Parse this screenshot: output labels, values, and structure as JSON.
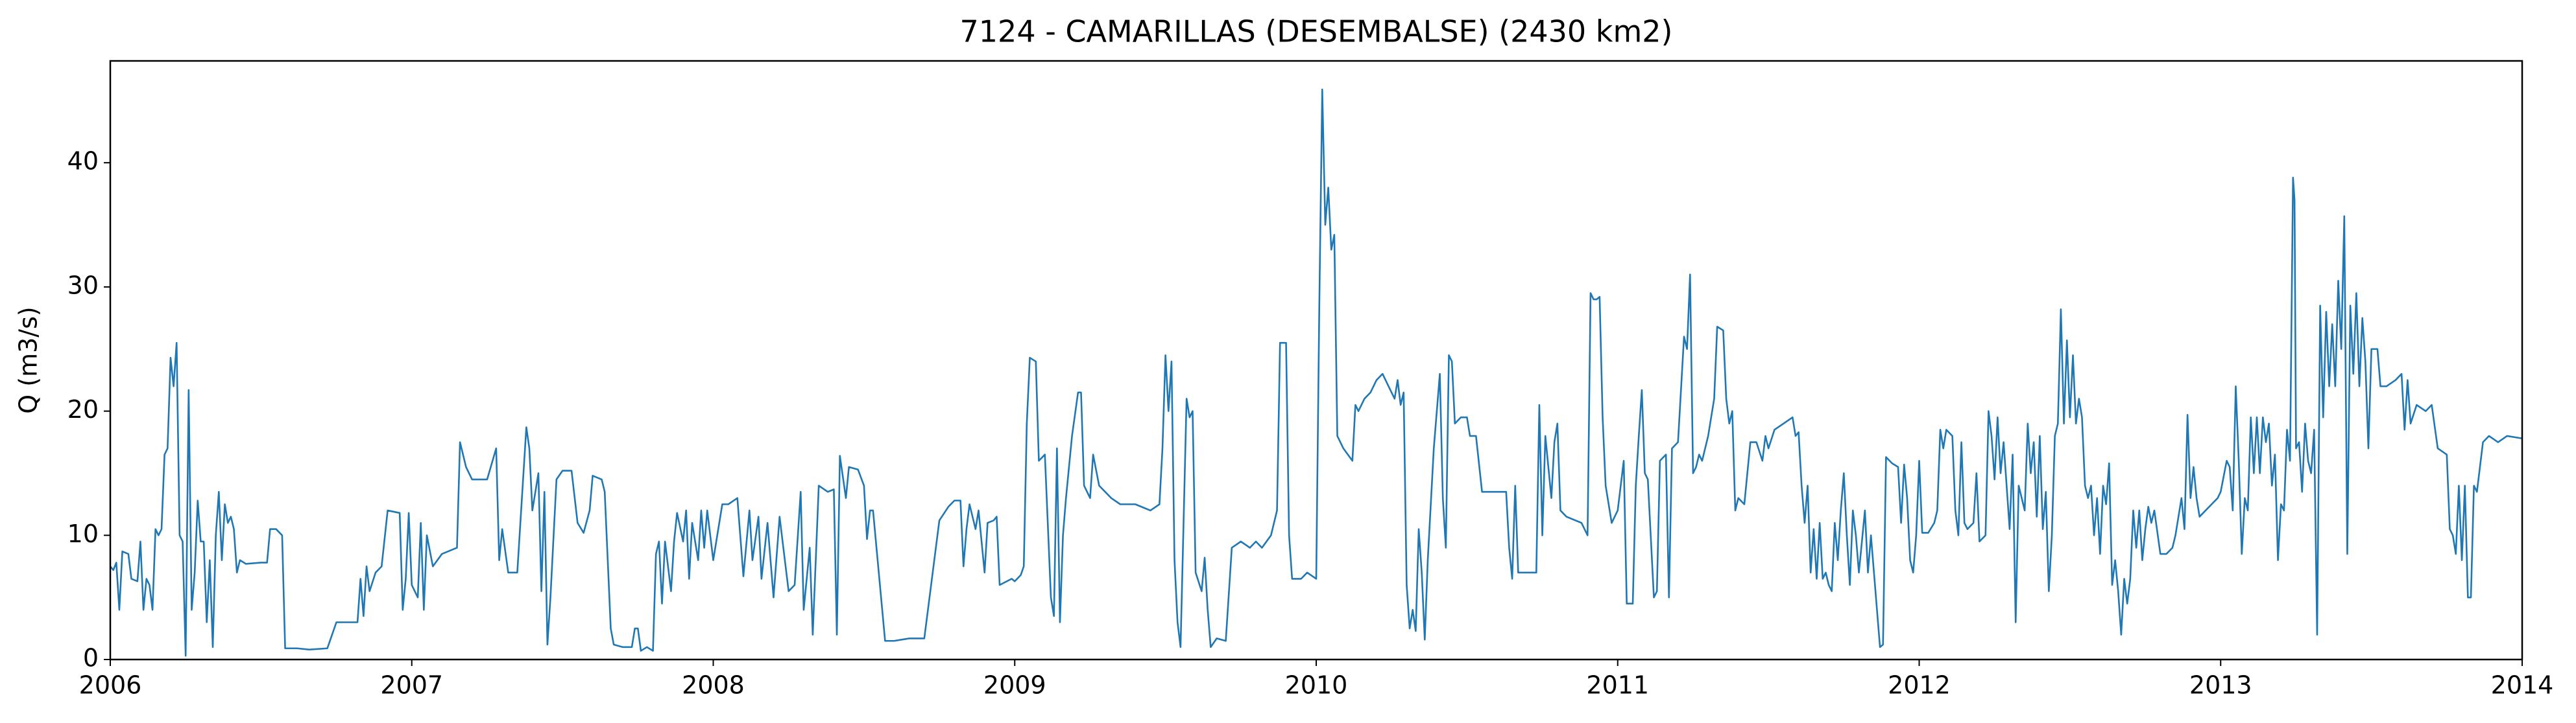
{
  "chart_data": {
    "type": "line",
    "title": "7124 - CAMARILLAS (DESEMBALSE) (2430 km2)",
    "y_label": "Q (m3/s)",
    "color": "#1f77b4",
    "xlim": [
      2006,
      2014
    ],
    "xticks": [
      2006,
      2007,
      2008,
      2009,
      2010,
      2011,
      2012,
      2013,
      2014
    ],
    "ylim": [
      0,
      48.2
    ],
    "yticks": [
      0,
      10,
      20,
      30,
      40
    ],
    "x": [
      2006,
      2006.01,
      2006.02,
      2006.03,
      2006.04,
      2006.06,
      2006.07,
      2006.09,
      2006.1,
      2006.11,
      2006.12,
      2006.13,
      2006.14,
      2006.15,
      2006.16,
      2006.17,
      2006.18,
      2006.19,
      2006.2,
      2006.21,
      2006.22,
      2006.23,
      2006.24,
      2006.25,
      2006.26,
      2006.27,
      2006.28,
      2006.29,
      2006.3,
      2006.31,
      2006.32,
      2006.33,
      2006.34,
      2006.35,
      2006.36,
      2006.37,
      2006.38,
      2006.39,
      2006.4,
      2006.41,
      2006.42,
      2006.43,
      2006.45,
      2006.5,
      2006.52,
      2006.53,
      2006.55,
      2006.57,
      2006.58,
      2006.62,
      2006.66,
      2006.72,
      2006.75,
      2006.8,
      2006.82,
      2006.83,
      2006.84,
      2006.85,
      2006.86,
      2006.88,
      2006.9,
      2006.92,
      2006.96,
      2006.97,
      2006.98,
      2006.99,
      2007,
      2007.02,
      2007.03,
      2007.04,
      2007.05,
      2007.07,
      2007.1,
      2007.15,
      2007.16,
      2007.18,
      2007.2,
      2007.25,
      2007.28,
      2007.29,
      2007.3,
      2007.32,
      2007.35,
      2007.38,
      2007.39,
      2007.4,
      2007.42,
      2007.43,
      2007.44,
      2007.45,
      2007.46,
      2007.48,
      2007.5,
      2007.53,
      2007.55,
      2007.57,
      2007.59,
      2007.6,
      2007.63,
      2007.64,
      2007.66,
      2007.67,
      2007.7,
      2007.73,
      2007.74,
      2007.75,
      2007.76,
      2007.78,
      2007.8,
      2007.81,
      2007.82,
      2007.83,
      2007.84,
      2007.86,
      2007.87,
      2007.88,
      2007.9,
      2007.91,
      2007.92,
      2007.93,
      2007.95,
      2007.96,
      2007.97,
      2007.98,
      2008,
      2008.03,
      2008.05,
      2008.08,
      2008.1,
      2008.12,
      2008.13,
      2008.15,
      2008.16,
      2008.18,
      2008.2,
      2008.22,
      2008.25,
      2008.27,
      2008.29,
      2008.3,
      2008.32,
      2008.33,
      2008.35,
      2008.38,
      2008.4,
      2008.41,
      2008.42,
      2008.44,
      2008.45,
      2008.48,
      2008.5,
      2008.51,
      2008.52,
      2008.53,
      2008.57,
      2008.6,
      2008.65,
      2008.7,
      2008.75,
      2008.78,
      2008.8,
      2008.82,
      2008.83,
      2008.84,
      2008.85,
      2008.87,
      2008.88,
      2008.9,
      2008.91,
      2008.93,
      2008.94,
      2008.95,
      2008.99,
      2009,
      2009.02,
      2009.03,
      2009.04,
      2009.05,
      2009.07,
      2009.08,
      2009.1,
      2009.12,
      2009.13,
      2009.14,
      2009.15,
      2009.16,
      2009.17,
      2009.19,
      2009.21,
      2009.22,
      2009.23,
      2009.25,
      2009.26,
      2009.28,
      2009.3,
      2009.32,
      2009.35,
      2009.4,
      2009.45,
      2009.48,
      2009.49,
      2009.5,
      2009.51,
      2009.52,
      2009.53,
      2009.54,
      2009.55,
      2009.57,
      2009.58,
      2009.59,
      2009.6,
      2009.62,
      2009.63,
      2009.64,
      2009.65,
      2009.67,
      2009.7,
      2009.72,
      2009.75,
      2009.78,
      2009.8,
      2009.82,
      2009.85,
      2009.87,
      2009.88,
      2009.9,
      2009.91,
      2009.92,
      2009.95,
      2009.97,
      2010,
      2010.01,
      2010.02,
      2010.03,
      2010.04,
      2010.05,
      2010.06,
      2010.07,
      2010.09,
      2010.12,
      2010.13,
      2010.14,
      2010.16,
      2010.18,
      2010.2,
      2010.22,
      2010.24,
      2010.26,
      2010.27,
      2010.28,
      2010.29,
      2010.3,
      2010.31,
      2010.32,
      2010.33,
      2010.34,
      2010.35,
      2010.36,
      2010.37,
      2010.38,
      2010.39,
      2010.4,
      2010.41,
      2010.42,
      2010.43,
      2010.44,
      2010.45,
      2010.46,
      2010.48,
      2010.5,
      2010.51,
      2010.53,
      2010.55,
      2010.6,
      2010.63,
      2010.64,
      2010.65,
      2010.66,
      2010.67,
      2010.7,
      2010.73,
      2010.74,
      2010.75,
      2010.76,
      2010.78,
      2010.79,
      2010.8,
      2010.81,
      2010.83,
      2010.88,
      2010.9,
      2010.91,
      2010.92,
      2010.93,
      2010.94,
      2010.95,
      2010.96,
      2010.98,
      2011,
      2011.02,
      2011.03,
      2011.05,
      2011.06,
      2011.07,
      2011.08,
      2011.09,
      2011.1,
      2011.12,
      2011.13,
      2011.14,
      2011.16,
      2011.17,
      2011.18,
      2011.2,
      2011.22,
      2011.23,
      2011.24,
      2011.25,
      2011.26,
      2011.27,
      2011.28,
      2011.3,
      2011.32,
      2011.33,
      2011.35,
      2011.36,
      2011.37,
      2011.38,
      2011.39,
      2011.4,
      2011.42,
      2011.44,
      2011.46,
      2011.48,
      2011.49,
      2011.5,
      2011.52,
      2011.55,
      2011.58,
      2011.59,
      2011.6,
      2011.61,
      2011.62,
      2011.63,
      2011.64,
      2011.65,
      2011.66,
      2011.67,
      2011.68,
      2011.69,
      2011.7,
      2011.71,
      2011.72,
      2011.73,
      2011.74,
      2011.75,
      2011.76,
      2011.77,
      2011.78,
      2011.79,
      2011.8,
      2011.81,
      2011.82,
      2011.83,
      2011.84,
      2011.86,
      2011.87,
      2011.88,
      2011.89,
      2011.91,
      2011.93,
      2011.94,
      2011.95,
      2011.96,
      2011.97,
      2011.98,
      2011.99,
      2012,
      2012.01,
      2012.03,
      2012.05,
      2012.06,
      2012.07,
      2012.08,
      2012.09,
      2012.11,
      2012.12,
      2012.13,
      2012.14,
      2012.15,
      2012.16,
      2012.18,
      2012.19,
      2012.2,
      2012.22,
      2012.23,
      2012.24,
      2012.25,
      2012.26,
      2012.27,
      2012.28,
      2012.3,
      2012.31,
      2012.32,
      2012.33,
      2012.35,
      2012.36,
      2012.37,
      2012.38,
      2012.39,
      2012.4,
      2012.41,
      2012.42,
      2012.43,
      2012.44,
      2012.45,
      2012.46,
      2012.47,
      2012.48,
      2012.49,
      2012.5,
      2012.51,
      2012.52,
      2012.53,
      2012.54,
      2012.55,
      2012.56,
      2012.57,
      2012.58,
      2012.59,
      2012.6,
      2012.61,
      2012.62,
      2012.63,
      2012.64,
      2012.65,
      2012.66,
      2012.67,
      2012.68,
      2012.69,
      2012.7,
      2012.71,
      2012.72,
      2012.73,
      2012.74,
      2012.75,
      2012.76,
      2012.77,
      2012.78,
      2012.8,
      2012.82,
      2012.84,
      2012.85,
      2012.87,
      2012.88,
      2012.89,
      2012.9,
      2012.91,
      2012.92,
      2012.93,
      2012.95,
      2012.97,
      2012.99,
      2013,
      2013.02,
      2013.03,
      2013.04,
      2013.05,
      2013.06,
      2013.07,
      2013.08,
      2013.09,
      2013.1,
      2013.11,
      2013.12,
      2013.13,
      2013.14,
      2013.15,
      2013.16,
      2013.17,
      2013.18,
      2013.19,
      2013.2,
      2013.21,
      2013.22,
      2013.23,
      2013.24,
      2013.245,
      2013.25,
      2013.26,
      2013.27,
      2013.28,
      2013.29,
      2013.3,
      2013.31,
      2013.32,
      2013.33,
      2013.34,
      2013.35,
      2013.36,
      2013.37,
      2013.38,
      2013.39,
      2013.4,
      2013.41,
      2013.42,
      2013.43,
      2013.44,
      2013.45,
      2013.46,
      2013.47,
      2013.48,
      2013.49,
      2013.5,
      2013.52,
      2013.53,
      2013.55,
      2013.58,
      2013.6,
      2013.61,
      2013.62,
      2013.63,
      2013.65,
      2013.68,
      2013.7,
      2013.72,
      2013.75,
      2013.76,
      2013.77,
      2013.78,
      2013.79,
      2013.8,
      2013.81,
      2013.82,
      2013.83,
      2013.84,
      2013.85,
      2013.87,
      2013.89,
      2013.92,
      2013.95,
      2014
    ],
    "values": [
      7.5,
      7.2,
      7.8,
      4,
      8.7,
      8.5,
      6.5,
      6.3,
      9.5,
      4,
      6.5,
      6,
      4,
      10.5,
      10,
      10.5,
      16.5,
      17,
      24.3,
      22,
      25.5,
      10,
      9.5,
      0.3,
      21.7,
      4,
      7,
      12.8,
      9.5,
      9.5,
      3,
      8,
      1,
      10,
      13.5,
      8,
      12.5,
      11,
      11.5,
      10.5,
      7,
      8,
      7.7,
      7.8,
      7.8,
      10.5,
      10.5,
      10,
      0.9,
      0.9,
      0.8,
      0.9,
      3,
      3,
      3,
      6.5,
      3.5,
      7.5,
      5.5,
      7,
      7.5,
      12,
      11.8,
      4,
      6.5,
      11.8,
      6,
      5,
      11,
      4,
      10,
      7.5,
      8.5,
      9,
      17.5,
      15.5,
      14.5,
      14.5,
      17,
      8,
      10.5,
      7,
      7,
      18.7,
      17,
      12,
      15,
      5.5,
      13.5,
      1.2,
      5,
      14.5,
      15.2,
      15.2,
      11,
      10.2,
      12,
      14.8,
      14.5,
      13.5,
      2.5,
      1.2,
      1,
      1,
      2.5,
      2.5,
      0.7,
      1,
      0.7,
      8.5,
      9.5,
      4.5,
      9.5,
      5.5,
      9.5,
      11.8,
      9.5,
      12,
      6.5,
      11,
      8,
      12,
      9,
      12,
      8,
      12.5,
      12.5,
      13,
      6.7,
      12,
      8,
      11.5,
      6.5,
      11,
      5,
      11.5,
      5.5,
      6,
      13.5,
      4,
      9,
      2,
      14,
      13.5,
      13.7,
      2,
      16.4,
      13,
      15.5,
      15.3,
      14,
      9.7,
      12,
      12,
      1.5,
      1.5,
      1.7,
      1.7,
      11.2,
      12.3,
      12.8,
      12.8,
      7.5,
      10.5,
      12.5,
      10.5,
      12,
      7,
      11,
      11.2,
      11.5,
      6,
      6.5,
      6.3,
      6.8,
      7.5,
      19,
      24.3,
      24,
      16,
      16.5,
      5,
      3.5,
      17,
      3,
      10,
      13,
      18,
      21.5,
      21.5,
      14,
      13,
      16.5,
      14,
      13.5,
      13,
      12.5,
      12.5,
      12,
      12.5,
      17,
      24.5,
      20,
      24,
      8,
      3,
      1,
      21,
      19.5,
      20,
      7,
      5.5,
      8.2,
      4,
      1,
      1.7,
      1.5,
      9,
      9.5,
      9,
      9.5,
      9,
      10,
      12,
      25.5,
      25.5,
      10,
      6.5,
      6.5,
      7,
      6.5,
      28,
      45.9,
      35,
      38,
      33,
      34.2,
      18,
      17,
      16,
      20.5,
      20,
      21,
      21.5,
      22.5,
      23,
      22,
      21,
      22.5,
      20.5,
      21.5,
      6,
      2.5,
      4,
      2.3,
      10.5,
      7,
      1.6,
      8,
      12.5,
      17,
      20,
      23,
      13,
      9,
      24.5,
      24,
      19,
      19.5,
      19.5,
      18,
      18,
      13.5,
      13.5,
      13.5,
      9,
      6.5,
      14,
      7,
      7,
      7,
      20.5,
      10,
      18,
      13,
      17.5,
      19,
      12,
      11.5,
      11,
      10,
      29.5,
      29,
      29,
      29.2,
      19.5,
      14,
      11,
      12,
      16,
      4.5,
      4.5,
      14,
      18,
      21.7,
      15,
      14.5,
      5,
      5.5,
      16,
      16.5,
      5,
      17,
      17.5,
      26,
      25,
      31,
      15,
      15.5,
      16.5,
      16,
      18,
      21,
      26.8,
      26.5,
      21,
      19,
      20,
      12,
      13,
      12.5,
      17.5,
      17.5,
      16,
      18,
      17,
      18.5,
      19,
      19.5,
      18,
      18.3,
      14,
      11,
      14,
      7,
      10.5,
      6.5,
      11,
      6.5,
      7,
      6,
      5.5,
      11,
      8,
      12,
      15,
      10,
      6,
      12,
      10,
      7,
      9.5,
      12,
      7,
      10,
      4,
      1,
      1.2,
      16.3,
      15.8,
      15.5,
      11,
      15.7,
      13,
      8,
      7,
      10,
      16,
      10.2,
      10.2,
      11,
      12,
      18.5,
      17,
      18.5,
      18,
      12,
      10,
      17.5,
      11,
      10.5,
      11,
      15,
      9.5,
      10,
      20,
      18,
      14.5,
      19.5,
      15,
      17.5,
      10.5,
      16.5,
      3,
      14,
      12,
      19,
      15,
      17.5,
      11.5,
      18,
      10.5,
      13.5,
      5.5,
      10,
      18,
      19,
      28.2,
      19,
      25.7,
      19.5,
      24.5,
      19,
      21,
      19.5,
      14,
      13,
      14,
      10,
      13,
      8.5,
      14,
      12.5,
      15.8,
      6,
      8,
      5.5,
      2,
      6.5,
      4.5,
      6.5,
      12,
      9,
      12,
      8,
      10.5,
      12.3,
      11,
      12,
      8.5,
      8.5,
      9,
      10,
      13,
      10.5,
      19.7,
      13,
      15.5,
      13,
      11.5,
      12,
      12.5,
      13,
      13.5,
      16,
      15.5,
      12,
      22,
      16,
      8.5,
      13,
      12,
      19.5,
      15,
      19.5,
      15,
      19.5,
      17.5,
      19,
      14,
      16.5,
      8,
      12.5,
      12,
      18.5,
      16,
      38.8,
      37,
      17,
      17.5,
      13.5,
      19,
      16,
      15,
      18.5,
      2,
      28.5,
      19.5,
      28,
      22,
      27,
      22,
      30.5,
      25,
      35.7,
      8.5,
      28.5,
      23,
      29.5,
      22,
      27.5,
      24,
      17,
      25,
      25,
      22,
      22,
      22.5,
      23,
      18.5,
      22.5,
      19,
      20.5,
      20,
      20.5,
      17,
      16.5,
      10.5,
      10,
      8.5,
      14,
      8,
      14,
      5,
      5,
      14,
      13.5,
      17.5,
      18,
      17.5,
      18,
      17.8
    ]
  }
}
